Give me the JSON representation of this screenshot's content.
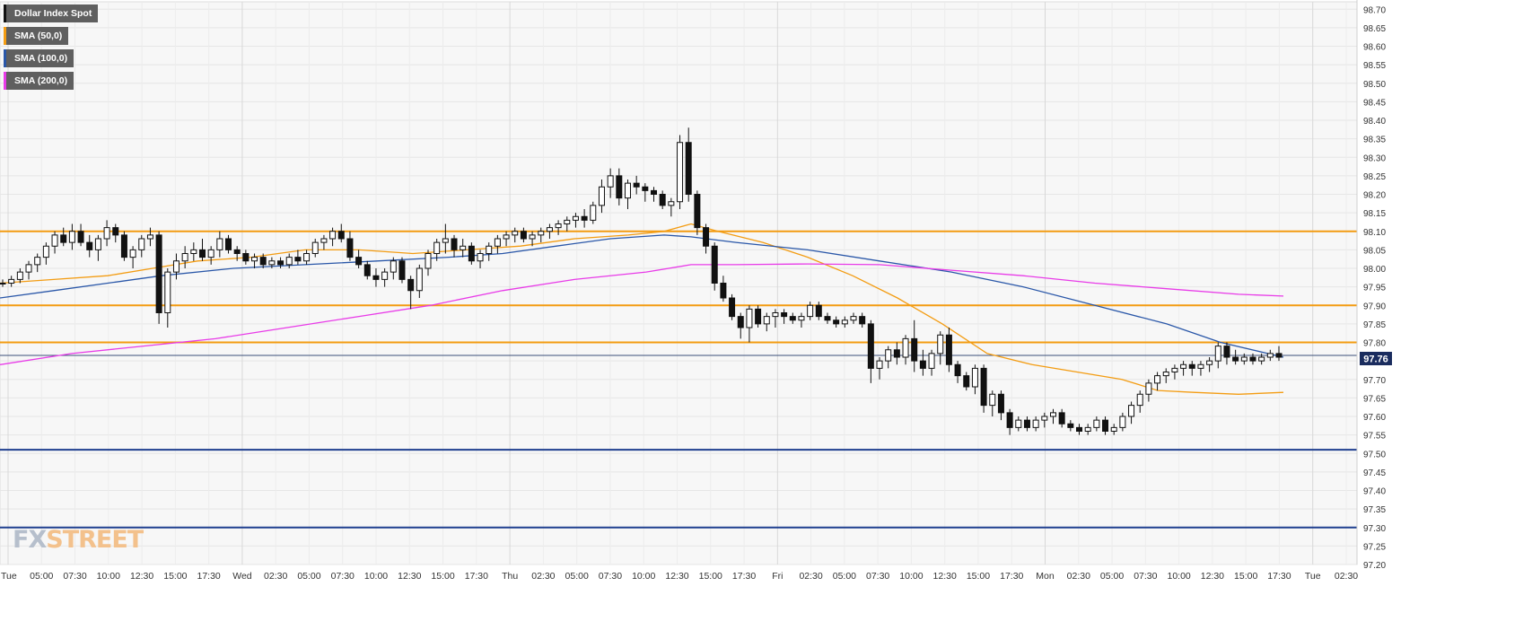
{
  "chart_data": {
    "type": "candlestick",
    "title": "Dollar Index Spot",
    "ylim": [
      97.2,
      98.72
    ],
    "grid": true,
    "last_price": "97.76",
    "y_ticks": [
      "98.70",
      "98.65",
      "98.60",
      "98.55",
      "98.50",
      "98.45",
      "98.40",
      "98.35",
      "98.30",
      "98.25",
      "98.20",
      "98.15",
      "98.10",
      "98.05",
      "98.00",
      "97.95",
      "97.90",
      "97.85",
      "97.80",
      "97.75",
      "97.70",
      "97.65",
      "97.60",
      "97.55",
      "97.50",
      "97.45",
      "97.40",
      "97.35",
      "97.30",
      "97.25",
      "97.20"
    ],
    "x_ticks": [
      "Tue",
      "05:00",
      "07:30",
      "10:00",
      "12:30",
      "15:00",
      "17:30",
      "Wed",
      "02:30",
      "05:00",
      "07:30",
      "10:00",
      "12:30",
      "15:00",
      "17:30",
      "Thu",
      "02:30",
      "05:00",
      "07:30",
      "10:00",
      "12:30",
      "15:00",
      "17:30",
      "Fri",
      "02:30",
      "05:00",
      "07:30",
      "10:00",
      "12:30",
      "15:00",
      "17:30",
      "Mon",
      "02:30",
      "05:00",
      "07:30",
      "10:00",
      "12:30",
      "15:00",
      "17:30",
      "Tue",
      "02:30"
    ],
    "horizontal_levels": [
      {
        "value": 98.1,
        "color": "#f39c12"
      },
      {
        "value": 97.9,
        "color": "#f39c12"
      },
      {
        "value": 97.8,
        "color": "#f39c12"
      },
      {
        "value": 97.51,
        "color": "#1f3f8f"
      },
      {
        "value": 97.3,
        "color": "#1f3f8f"
      }
    ],
    "series": [
      {
        "name": "SMA (50,0)",
        "color": "#f39c12",
        "values": [
          [
            0,
            97.96
          ],
          [
            60,
            97.97
          ],
          [
            120,
            97.98
          ],
          [
            170,
            98.0
          ],
          [
            220,
            98.02
          ],
          [
            280,
            98.03
          ],
          [
            340,
            98.05
          ],
          [
            400,
            98.05
          ],
          [
            460,
            98.04
          ],
          [
            520,
            98.05
          ],
          [
            580,
            98.06
          ],
          [
            640,
            98.08
          ],
          [
            700,
            98.09
          ],
          [
            740,
            98.1
          ],
          [
            770,
            98.12
          ],
          [
            800,
            98.1
          ],
          [
            850,
            98.07
          ],
          [
            900,
            98.03
          ],
          [
            950,
            97.98
          ],
          [
            1000,
            97.92
          ],
          [
            1050,
            97.85
          ],
          [
            1100,
            97.77
          ],
          [
            1150,
            97.74
          ],
          [
            1200,
            97.72
          ],
          [
            1250,
            97.7
          ],
          [
            1290,
            97.67
          ],
          [
            1330,
            97.665
          ],
          [
            1380,
            97.66
          ],
          [
            1430,
            97.665
          ]
        ]
      },
      {
        "name": "SMA (100,0)",
        "color": "#2a57a8",
        "values": [
          [
            0,
            97.92
          ],
          [
            60,
            97.94
          ],
          [
            120,
            97.96
          ],
          [
            180,
            97.98
          ],
          [
            260,
            98.0
          ],
          [
            340,
            98.01
          ],
          [
            420,
            98.02
          ],
          [
            500,
            98.03
          ],
          [
            560,
            98.04
          ],
          [
            620,
            98.06
          ],
          [
            680,
            98.08
          ],
          [
            740,
            98.09
          ],
          [
            770,
            98.085
          ],
          [
            820,
            98.07
          ],
          [
            900,
            98.05
          ],
          [
            980,
            98.02
          ],
          [
            1060,
            97.99
          ],
          [
            1140,
            97.95
          ],
          [
            1220,
            97.9
          ],
          [
            1300,
            97.85
          ],
          [
            1360,
            97.8
          ],
          [
            1430,
            97.76
          ]
        ]
      },
      {
        "name": "SMA (200,0)",
        "color": "#e83be8",
        "values": [
          [
            0,
            97.74
          ],
          [
            80,
            97.77
          ],
          [
            160,
            97.79
          ],
          [
            240,
            97.81
          ],
          [
            320,
            97.84
          ],
          [
            400,
            97.87
          ],
          [
            480,
            97.9
          ],
          [
            560,
            97.94
          ],
          [
            640,
            97.97
          ],
          [
            720,
            97.99
          ],
          [
            770,
            98.01
          ],
          [
            820,
            98.01
          ],
          [
            900,
            98.012
          ],
          [
            980,
            98.01
          ],
          [
            1060,
            97.995
          ],
          [
            1140,
            97.98
          ],
          [
            1220,
            97.96
          ],
          [
            1300,
            97.945
          ],
          [
            1380,
            97.93
          ],
          [
            1430,
            97.925
          ]
        ]
      }
    ],
    "candles": [
      [
        97.96,
        97.97,
        97.95,
        97.96
      ],
      [
        97.96,
        97.98,
        97.95,
        97.97
      ],
      [
        97.97,
        98.0,
        97.96,
        97.99
      ],
      [
        97.99,
        98.02,
        97.97,
        98.01
      ],
      [
        98.01,
        98.04,
        97.99,
        98.03
      ],
      [
        98.03,
        98.07,
        98.01,
        98.06
      ],
      [
        98.06,
        98.1,
        98.04,
        98.09
      ],
      [
        98.09,
        98.11,
        98.06,
        98.07
      ],
      [
        98.07,
        98.12,
        98.05,
        98.1
      ],
      [
        98.1,
        98.12,
        98.06,
        98.07
      ],
      [
        98.07,
        98.09,
        98.03,
        98.05
      ],
      [
        98.05,
        98.09,
        98.02,
        98.08
      ],
      [
        98.08,
        98.13,
        98.06,
        98.11
      ],
      [
        98.11,
        98.12,
        98.07,
        98.09
      ],
      [
        98.09,
        98.1,
        98.02,
        98.03
      ],
      [
        98.03,
        98.06,
        98.0,
        98.05
      ],
      [
        98.05,
        98.09,
        98.03,
        98.08
      ],
      [
        98.08,
        98.11,
        98.06,
        98.09
      ],
      [
        98.09,
        98.1,
        97.85,
        97.88
      ],
      [
        97.88,
        98.0,
        97.84,
        97.99
      ],
      [
        97.99,
        98.04,
        97.97,
        98.02
      ],
      [
        98.02,
        98.06,
        98.0,
        98.04
      ],
      [
        98.04,
        98.07,
        98.02,
        98.05
      ],
      [
        98.05,
        98.08,
        98.02,
        98.03
      ],
      [
        98.03,
        98.06,
        98.01,
        98.05
      ],
      [
        98.05,
        98.1,
        98.03,
        98.08
      ],
      [
        98.08,
        98.09,
        98.04,
        98.05
      ],
      [
        98.05,
        98.06,
        98.02,
        98.04
      ],
      [
        98.04,
        98.05,
        98.01,
        98.02
      ],
      [
        98.02,
        98.04,
        98.0,
        98.03
      ],
      [
        98.03,
        98.04,
        98.0,
        98.01
      ],
      [
        98.01,
        98.03,
        98.0,
        98.02
      ],
      [
        98.02,
        98.03,
        98.0,
        98.01
      ],
      [
        98.01,
        98.04,
        98.0,
        98.03
      ],
      [
        98.03,
        98.05,
        98.01,
        98.02
      ],
      [
        98.02,
        98.05,
        98.01,
        98.04
      ],
      [
        98.04,
        98.08,
        98.03,
        98.07
      ],
      [
        98.07,
        98.09,
        98.05,
        98.08
      ],
      [
        98.08,
        98.11,
        98.06,
        98.1
      ],
      [
        98.1,
        98.12,
        98.07,
        98.08
      ],
      [
        98.08,
        98.1,
        98.02,
        98.03
      ],
      [
        98.03,
        98.05,
        98.0,
        98.01
      ],
      [
        98.01,
        98.02,
        97.97,
        97.98
      ],
      [
        97.98,
        98.0,
        97.95,
        97.97
      ],
      [
        97.97,
        98.0,
        97.95,
        97.99
      ],
      [
        97.99,
        98.03,
        97.97,
        98.02
      ],
      [
        98.02,
        98.03,
        97.96,
        97.97
      ],
      [
        97.97,
        97.98,
        97.89,
        97.94
      ],
      [
        97.94,
        98.01,
        97.92,
        98.0
      ],
      [
        98.0,
        98.05,
        97.98,
        98.04
      ],
      [
        98.04,
        98.08,
        98.02,
        98.07
      ],
      [
        98.07,
        98.12,
        98.04,
        98.08
      ],
      [
        98.08,
        98.09,
        98.03,
        98.05
      ],
      [
        98.05,
        98.08,
        98.03,
        98.06
      ],
      [
        98.06,
        98.07,
        98.01,
        98.02
      ],
      [
        98.02,
        98.05,
        98.0,
        98.04
      ],
      [
        98.04,
        98.07,
        98.02,
        98.06
      ],
      [
        98.06,
        98.09,
        98.04,
        98.08
      ],
      [
        98.08,
        98.1,
        98.06,
        98.09
      ],
      [
        98.09,
        98.11,
        98.07,
        98.1
      ],
      [
        98.1,
        98.11,
        98.07,
        98.08
      ],
      [
        98.08,
        98.1,
        98.06,
        98.09
      ],
      [
        98.09,
        98.11,
        98.07,
        98.1
      ],
      [
        98.1,
        98.12,
        98.08,
        98.11
      ],
      [
        98.11,
        98.13,
        98.09,
        98.12
      ],
      [
        98.12,
        98.14,
        98.1,
        98.13
      ],
      [
        98.13,
        98.15,
        98.11,
        98.14
      ],
      [
        98.14,
        98.16,
        98.11,
        98.13
      ],
      [
        98.13,
        98.18,
        98.12,
        98.17
      ],
      [
        98.17,
        98.24,
        98.15,
        98.22
      ],
      [
        98.22,
        98.27,
        98.19,
        98.25
      ],
      [
        98.25,
        98.27,
        98.17,
        98.19
      ],
      [
        98.19,
        98.24,
        98.16,
        98.23
      ],
      [
        98.23,
        98.25,
        98.2,
        98.22
      ],
      [
        98.22,
        98.23,
        98.18,
        98.21
      ],
      [
        98.21,
        98.22,
        98.18,
        98.2
      ],
      [
        98.2,
        98.21,
        98.16,
        98.17
      ],
      [
        98.17,
        98.19,
        98.14,
        98.18
      ],
      [
        98.18,
        98.36,
        98.16,
        98.34
      ],
      [
        98.34,
        98.38,
        98.18,
        98.2
      ],
      [
        98.2,
        98.21,
        98.09,
        98.11
      ],
      [
        98.11,
        98.12,
        98.04,
        98.06
      ],
      [
        98.06,
        98.07,
        97.94,
        97.96
      ],
      [
        97.96,
        97.98,
        97.91,
        97.92
      ],
      [
        97.92,
        97.93,
        97.86,
        97.87
      ],
      [
        97.87,
        97.88,
        97.81,
        97.84
      ],
      [
        97.84,
        97.9,
        97.8,
        97.89
      ],
      [
        97.89,
        97.9,
        97.84,
        97.85
      ],
      [
        97.85,
        97.88,
        97.83,
        97.87
      ],
      [
        97.87,
        97.89,
        97.84,
        97.88
      ],
      [
        97.88,
        97.89,
        97.85,
        97.87
      ],
      [
        97.87,
        97.88,
        97.85,
        97.86
      ],
      [
        97.86,
        97.88,
        97.84,
        97.87
      ],
      [
        97.87,
        97.91,
        97.86,
        97.9
      ],
      [
        97.9,
        97.91,
        97.86,
        97.87
      ],
      [
        97.87,
        97.88,
        97.85,
        97.86
      ],
      [
        97.86,
        97.87,
        97.84,
        97.85
      ],
      [
        97.85,
        97.87,
        97.84,
        97.86
      ],
      [
        97.86,
        97.88,
        97.85,
        97.87
      ],
      [
        97.87,
        97.88,
        97.84,
        97.85
      ],
      [
        97.85,
        97.86,
        97.69,
        97.73
      ],
      [
        97.73,
        97.76,
        97.7,
        97.75
      ],
      [
        97.75,
        97.79,
        97.73,
        97.78
      ],
      [
        97.78,
        97.8,
        97.74,
        97.76
      ],
      [
        97.76,
        97.82,
        97.74,
        97.81
      ],
      [
        97.81,
        97.86,
        97.72,
        97.75
      ],
      [
        97.75,
        97.78,
        97.71,
        97.73
      ],
      [
        97.73,
        97.78,
        97.71,
        97.77
      ],
      [
        97.77,
        97.83,
        97.74,
        97.82
      ],
      [
        97.82,
        97.84,
        97.72,
        97.74
      ],
      [
        97.74,
        97.75,
        97.69,
        97.71
      ],
      [
        97.71,
        97.72,
        97.67,
        97.68
      ],
      [
        97.68,
        97.74,
        97.66,
        97.73
      ],
      [
        97.73,
        97.74,
        97.61,
        97.63
      ],
      [
        97.63,
        97.67,
        97.6,
        97.66
      ],
      [
        97.66,
        97.67,
        97.59,
        97.61
      ],
      [
        97.61,
        97.62,
        97.55,
        97.57
      ],
      [
        97.57,
        97.6,
        97.56,
        97.59
      ],
      [
        97.59,
        97.6,
        97.56,
        97.57
      ],
      [
        97.57,
        97.6,
        97.56,
        97.59
      ],
      [
        97.59,
        97.61,
        97.57,
        97.6
      ],
      [
        97.6,
        97.62,
        97.58,
        97.61
      ],
      [
        97.61,
        97.62,
        97.57,
        97.58
      ],
      [
        97.58,
        97.59,
        97.56,
        97.57
      ],
      [
        97.57,
        97.58,
        97.55,
        97.56
      ],
      [
        97.56,
        97.58,
        97.55,
        97.57
      ],
      [
        97.57,
        97.6,
        97.56,
        97.59
      ],
      [
        97.59,
        97.6,
        97.55,
        97.56
      ],
      [
        97.56,
        97.58,
        97.55,
        97.57
      ],
      [
        97.57,
        97.61,
        97.56,
        97.6
      ],
      [
        97.6,
        97.64,
        97.58,
        97.63
      ],
      [
        97.63,
        97.67,
        97.61,
        97.66
      ],
      [
        97.66,
        97.7,
        97.64,
        97.69
      ],
      [
        97.69,
        97.72,
        97.67,
        97.71
      ],
      [
        97.71,
        97.73,
        97.69,
        97.72
      ],
      [
        97.72,
        97.74,
        97.7,
        97.73
      ],
      [
        97.73,
        97.75,
        97.71,
        97.74
      ],
      [
        97.74,
        97.75,
        97.71,
        97.73
      ],
      [
        97.73,
        97.75,
        97.71,
        97.74
      ],
      [
        97.74,
        97.76,
        97.72,
        97.75
      ],
      [
        97.75,
        97.8,
        97.73,
        97.79
      ],
      [
        97.79,
        97.8,
        97.74,
        97.76
      ],
      [
        97.76,
        97.78,
        97.74,
        97.75
      ],
      [
        97.75,
        97.77,
        97.74,
        97.76
      ],
      [
        97.76,
        97.77,
        97.74,
        97.75
      ],
      [
        97.75,
        97.77,
        97.74,
        97.76
      ],
      [
        97.76,
        97.78,
        97.75,
        97.77
      ],
      [
        97.77,
        97.79,
        97.75,
        97.76
      ]
    ]
  },
  "legend": [
    {
      "label": "Dollar Index Spot",
      "color": "#111111"
    },
    {
      "label": "SMA (50,0)",
      "color": "#f39c12"
    },
    {
      "label": "SMA (100,0)",
      "color": "#2a57a8"
    },
    {
      "label": "SMA (200,0)",
      "color": "#e83be8"
    }
  ],
  "watermark": {
    "part1": "FX",
    "part2": "STREET"
  }
}
